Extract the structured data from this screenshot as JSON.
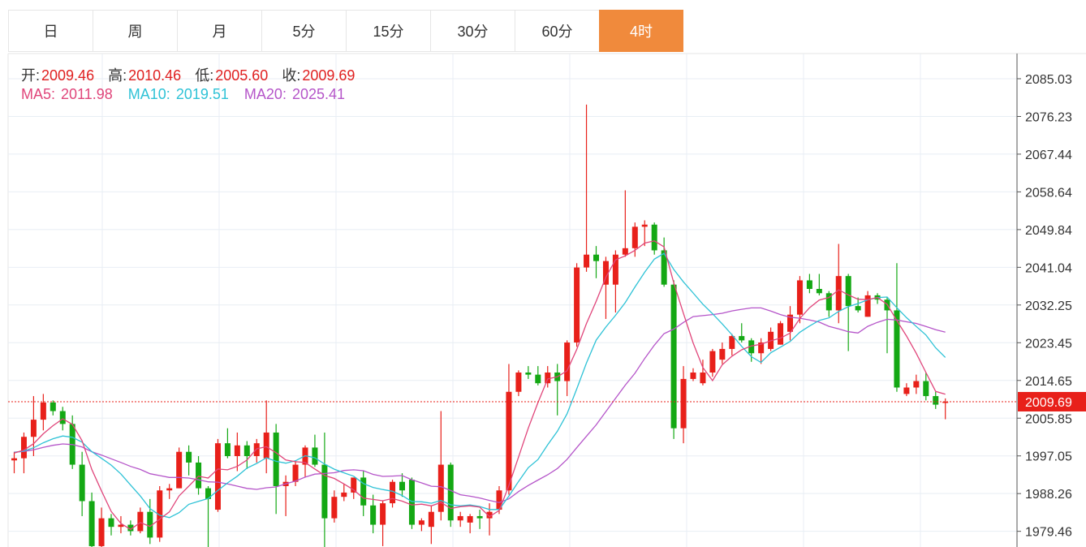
{
  "tabs": [
    {
      "label": "日",
      "active": false
    },
    {
      "label": "周",
      "active": false
    },
    {
      "label": "月",
      "active": false
    },
    {
      "label": "5分",
      "active": false
    },
    {
      "label": "15分",
      "active": false
    },
    {
      "label": "30分",
      "active": false
    },
    {
      "label": "60分",
      "active": false
    },
    {
      "label": "4时",
      "active": true
    }
  ],
  "ohlc_info": {
    "open_label": "开:",
    "open": "2009.46",
    "high_label": "高:",
    "high": "2010.46",
    "low_label": "低:",
    "low": "2005.60",
    "close_label": "收:",
    "close": "2009.69"
  },
  "ma_info": [
    {
      "label": "MA5:",
      "value": "2011.98",
      "color": "#e0457a"
    },
    {
      "label": "MA10:",
      "value": "2019.51",
      "color": "#2ec2d6"
    },
    {
      "label": "MA20:",
      "value": "2025.41",
      "color": "#b555c9"
    }
  ],
  "colors": {
    "up": "#e8201a",
    "down": "#14a814",
    "accent": "#f08a3c"
  },
  "chart_data": {
    "type": "candlestick",
    "yticks": [
      "2085.03",
      "2076.23",
      "2067.44",
      "2058.64",
      "2049.84",
      "2041.04",
      "2032.25",
      "2023.45",
      "2014.65",
      "2005.85",
      "1997.05",
      "1988.26",
      "1979.46"
    ],
    "ylim": [
      1975.8,
      2090.9
    ],
    "last_price": "2009.69",
    "candles": [
      [
        1996.0,
        1998.0,
        1993.0,
        1996.5
      ],
      [
        1996.5,
        2002.5,
        1993.0,
        2001.5
      ],
      [
        2001.5,
        2011.0,
        1997.0,
        2005.5
      ],
      [
        2005.5,
        2011.5,
        2003.0,
        2009.5
      ],
      [
        2009.5,
        2010.0,
        2006.5,
        2007.5
      ],
      [
        2007.5,
        2008.5,
        2003.0,
        2004.5
      ],
      [
        2004.5,
        2006.5,
        1994.0,
        1995.0
      ],
      [
        1995.0,
        1998.0,
        1983.0,
        1986.5
      ],
      [
        1986.5,
        1988.5,
        1974.0,
        1976.0
      ],
      [
        1976.0,
        1985.0,
        1974.0,
        1982.5
      ],
      [
        1982.5,
        1983.5,
        1978.5,
        1980.5
      ],
      [
        1980.5,
        1983.0,
        1979.0,
        1981.0
      ],
      [
        1981.0,
        1982.0,
        1978.5,
        1979.5
      ],
      [
        1979.5,
        1985.0,
        1979.0,
        1984.0
      ],
      [
        1984.0,
        1987.0,
        1976.5,
        1978.0
      ],
      [
        1978.0,
        1990.0,
        1977.0,
        1989.0
      ],
      [
        1989.0,
        1990.5,
        1987.0,
        1989.5
      ],
      [
        1989.5,
        1999.0,
        1989.5,
        1998.0
      ],
      [
        1998.0,
        1999.5,
        1992.5,
        1995.5
      ],
      [
        1995.5,
        1997.0,
        1988.0,
        1989.5
      ],
      [
        1989.5,
        1990.0,
        1975.0,
        1987.0
      ],
      [
        1984.5,
        2001.0,
        1984.0,
        2000.0
      ],
      [
        2000.0,
        2003.5,
        1996.5,
        1997.0
      ],
      [
        1997.0,
        2002.5,
        1993.5,
        1999.5
      ],
      [
        1999.5,
        2000.5,
        1994.0,
        1997.0
      ],
      [
        1997.0,
        2001.0,
        1995.5,
        2000.0
      ],
      [
        1996.5,
        2010.0,
        1993.0,
        2002.5
      ],
      [
        2002.5,
        2004.5,
        1983.5,
        1990.0
      ],
      [
        1990.0,
        1992.5,
        1983.0,
        1991.0
      ],
      [
        1991.0,
        1996.0,
        1990.0,
        1995.0
      ],
      [
        1995.0,
        1999.5,
        1992.0,
        1999.0
      ],
      [
        1999.0,
        2002.0,
        1994.5,
        1995.0
      ],
      [
        1995.0,
        2002.5,
        1974.0,
        1982.5
      ],
      [
        1982.5,
        1989.0,
        1981.5,
        1987.5
      ],
      [
        1987.5,
        1990.5,
        1986.5,
        1988.5
      ],
      [
        1988.5,
        1992.0,
        1987.0,
        1992.0
      ],
      [
        1992.0,
        1993.5,
        1983.0,
        1985.5
      ],
      [
        1985.5,
        1988.0,
        1979.0,
        1981.0
      ],
      [
        1981.0,
        1986.5,
        1976.0,
        1986.0
      ],
      [
        1986.0,
        1991.5,
        1985.0,
        1991.0
      ],
      [
        1991.0,
        1993.0,
        1987.5,
        1989.0
      ],
      [
        1991.5,
        1992.0,
        1980.0,
        1981.0
      ],
      [
        1981.0,
        1982.5,
        1979.5,
        1982.0
      ],
      [
        1980.5,
        1985.5,
        1976.5,
        1984.0
      ],
      [
        1984.0,
        2007.5,
        1982.0,
        1995.0
      ],
      [
        1995.0,
        1995.5,
        1980.5,
        1982.0
      ],
      [
        1982.0,
        1984.0,
        1980.5,
        1983.0
      ],
      [
        1981.5,
        1983.5,
        1979.0,
        1983.0
      ],
      [
        1983.0,
        1984.5,
        1980.0,
        1982.5
      ],
      [
        1982.5,
        1986.0,
        1978.5,
        1984.0
      ],
      [
        1984.5,
        1990.0,
        1983.5,
        1989.0
      ],
      [
        1989.0,
        2018.5,
        1988.0,
        2012.0
      ],
      [
        2012.0,
        2017.0,
        2011.0,
        2016.5
      ],
      [
        2016.5,
        2018.0,
        2015.0,
        2016.0
      ],
      [
        2016.0,
        2018.0,
        2013.5,
        2014.0
      ],
      [
        2014.0,
        2018.0,
        2013.0,
        2016.5
      ],
      [
        2016.5,
        2018.5,
        2006.5,
        2014.5
      ],
      [
        2014.5,
        2024.0,
        2011.0,
        2023.5
      ],
      [
        2023.5,
        2042.0,
        2022.5,
        2041.0
      ],
      [
        2041.0,
        2079.0,
        2040.0,
        2044.0
      ],
      [
        2044.0,
        2046.0,
        2038.5,
        2042.5
      ],
      [
        2037.0,
        2043.5,
        2029.0,
        2042.5
      ],
      [
        2037.0,
        2045.0,
        2030.5,
        2044.0
      ],
      [
        2044.0,
        2059.0,
        2043.5,
        2045.5
      ],
      [
        2045.5,
        2051.5,
        2043.5,
        2050.5
      ],
      [
        2050.5,
        2052.0,
        2046.0,
        2051.0
      ],
      [
        2051.0,
        2051.5,
        2044.0,
        2045.0
      ],
      [
        2045.0,
        2048.0,
        2036.5,
        2037.0
      ],
      [
        2037.0,
        2038.0,
        2001.0,
        2003.5
      ],
      [
        2003.5,
        2018.0,
        2000.0,
        2015.0
      ],
      [
        2015.0,
        2017.5,
        2014.5,
        2016.5
      ],
      [
        2014.0,
        2019.5,
        2013.5,
        2016.5
      ],
      [
        2016.5,
        2022.0,
        2015.5,
        2021.5
      ],
      [
        2019.5,
        2023.5,
        2018.5,
        2022.0
      ],
      [
        2022.0,
        2025.5,
        2020.5,
        2025.0
      ],
      [
        2025.0,
        2028.0,
        2023.5,
        2024.0
      ],
      [
        2024.0,
        2024.5,
        2019.0,
        2021.0
      ],
      [
        2021.0,
        2024.5,
        2018.5,
        2023.5
      ],
      [
        2022.0,
        2027.0,
        2021.5,
        2026.0
      ],
      [
        2023.0,
        2028.5,
        2023.0,
        2028.0
      ],
      [
        2026.0,
        2032.0,
        2024.0,
        2030.0
      ],
      [
        2030.0,
        2039.0,
        2028.0,
        2038.0
      ],
      [
        2038.0,
        2039.5,
        2035.0,
        2036.0
      ],
      [
        2036.0,
        2039.5,
        2034.5,
        2035.0
      ],
      [
        2035.0,
        2035.5,
        2029.5,
        2031.0
      ],
      [
        2031.0,
        2046.5,
        2028.0,
        2039.0
      ],
      [
        2039.0,
        2039.5,
        2021.5,
        2032.0
      ],
      [
        2032.0,
        2034.0,
        2030.5,
        2031.0
      ],
      [
        2029.5,
        2035.5,
        2029.5,
        2034.5
      ],
      [
        2034.5,
        2035.0,
        2032.5,
        2033.5
      ],
      [
        2033.5,
        2034.0,
        2021.0,
        2031.0
      ],
      [
        2031.0,
        2042.0,
        2012.0,
        2013.0
      ],
      [
        2011.5,
        2014.0,
        2011.0,
        2013.0
      ],
      [
        2013.0,
        2016.0,
        2011.5,
        2014.5
      ],
      [
        2014.5,
        2016.5,
        2010.0,
        2011.0
      ],
      [
        2011.0,
        2012.0,
        2008.0,
        2009.0
      ],
      [
        2009.46,
        2010.46,
        2005.6,
        2009.69
      ]
    ]
  }
}
